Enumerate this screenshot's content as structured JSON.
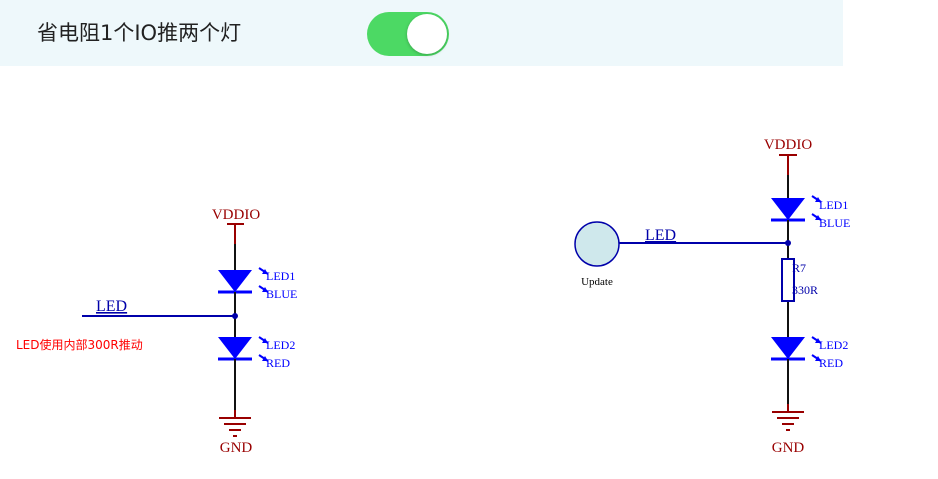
{
  "header": {
    "title": "省电阻1个IO推两个灯",
    "toggle_on": true,
    "toggle_color": "#4cd964"
  },
  "colors": {
    "wire": "#0000aa",
    "power": "#990000",
    "led": "#0000ff",
    "note": "#ff0000",
    "port_fill": "#cfe8ec"
  },
  "left_circuit": {
    "power_label": "VDDIO",
    "ground_label": "GND",
    "net_label": "LED",
    "led1": {
      "ref": "LED1",
      "value": "BLUE"
    },
    "led2": {
      "ref": "LED2",
      "value": "RED"
    },
    "note": "LED使用内部300R推动"
  },
  "right_circuit": {
    "power_label": "VDDIO",
    "ground_label": "GND",
    "net_label": "LED",
    "port_label": "Update",
    "led1": {
      "ref": "LED1",
      "value": "BLUE"
    },
    "resistor": {
      "ref": "R7",
      "value": "330R"
    },
    "led2": {
      "ref": "LED2",
      "value": "RED"
    }
  }
}
